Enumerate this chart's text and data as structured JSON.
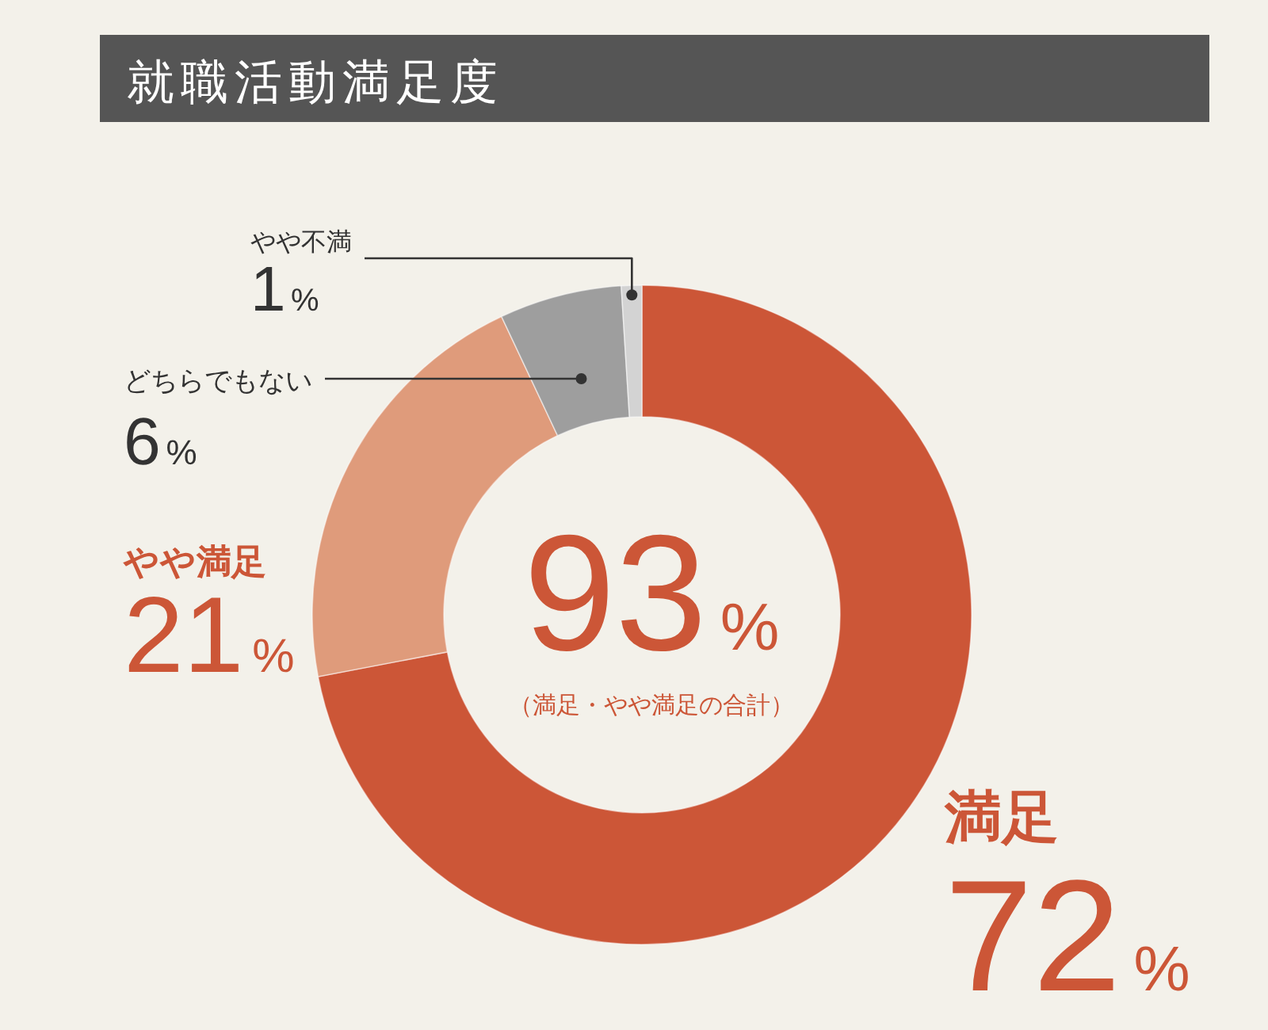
{
  "chart_data": {
    "type": "donut",
    "title": "就職活動満足度",
    "categories": [
      "満足",
      "やや満足",
      "どちらでもない",
      "やや不満"
    ],
    "values": [
      72,
      21,
      6,
      1
    ],
    "colors": [
      "#cc5637",
      "#df9b7b",
      "#9e9e9e",
      "#d3d3d3"
    ],
    "value_labels": [
      "72%",
      "21%",
      "6%",
      "1%"
    ],
    "annotations": [
      "93%",
      "（満足・やや満足の合計）"
    ]
  }
}
